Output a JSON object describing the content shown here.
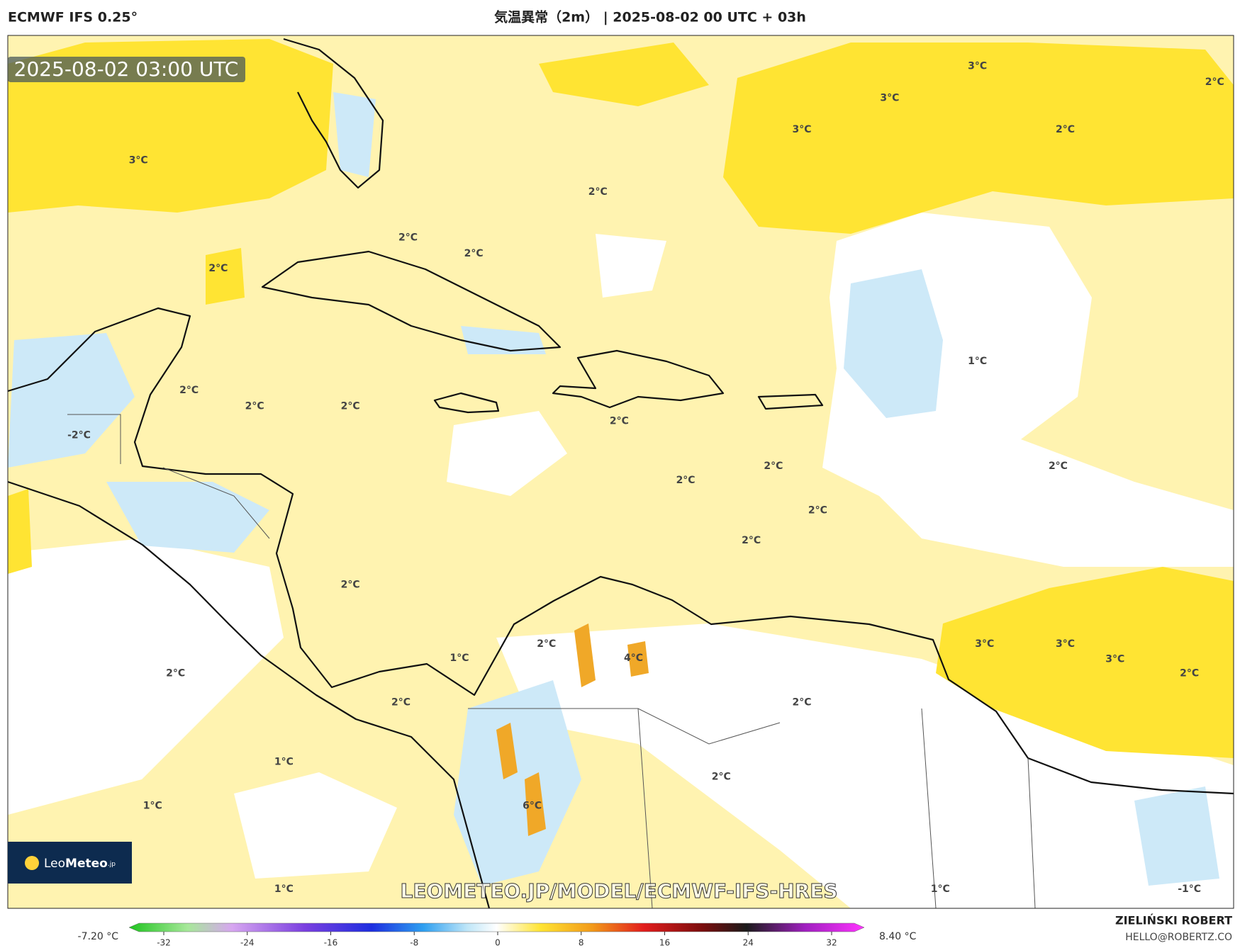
{
  "header": {
    "model": "ECMWF IFS 0.25°",
    "title": "気温異常（2m） | 2025-08-02 00 UTC + 03h"
  },
  "map": {
    "timestamp": "2025-08-02 03:00 UTC",
    "contour_labels": [
      "3°C",
      "3°C",
      "3°C",
      "3°C",
      "2°C",
      "2°C",
      "2°C",
      "2°C",
      "2°C",
      "2°C",
      "1°C",
      "2°C",
      "2°C",
      "2°C",
      "-2°C",
      "2°C",
      "2°C",
      "2°C",
      "2°C",
      "2°C",
      "2°C",
      "2°C",
      "3°C",
      "3°C",
      "3°C",
      "2°C",
      "1°C",
      "4°C",
      "2°C",
      "2°C",
      "2°C",
      "2°C",
      "2°C",
      "1°C",
      "1°C",
      "6°C",
      "1°C",
      "1°C",
      "-1°C"
    ],
    "watermark": "LEOMETEO.JP/MODEL/ECMWF-IFS-HRES",
    "logo": {
      "prefix": "Leo",
      "name": "Meteo",
      "suffix": ".jp"
    }
  },
  "colorbar": {
    "min_label": "-7.20 °C",
    "max_label": "8.40 °C",
    "ticks": [
      -32,
      -24,
      -16,
      -8,
      0,
      8,
      16,
      24,
      32
    ]
  },
  "credits": {
    "author": "ZIELIŃSKI ROBERT",
    "contact": "HELLO@ROBERTZ.CO"
  }
}
